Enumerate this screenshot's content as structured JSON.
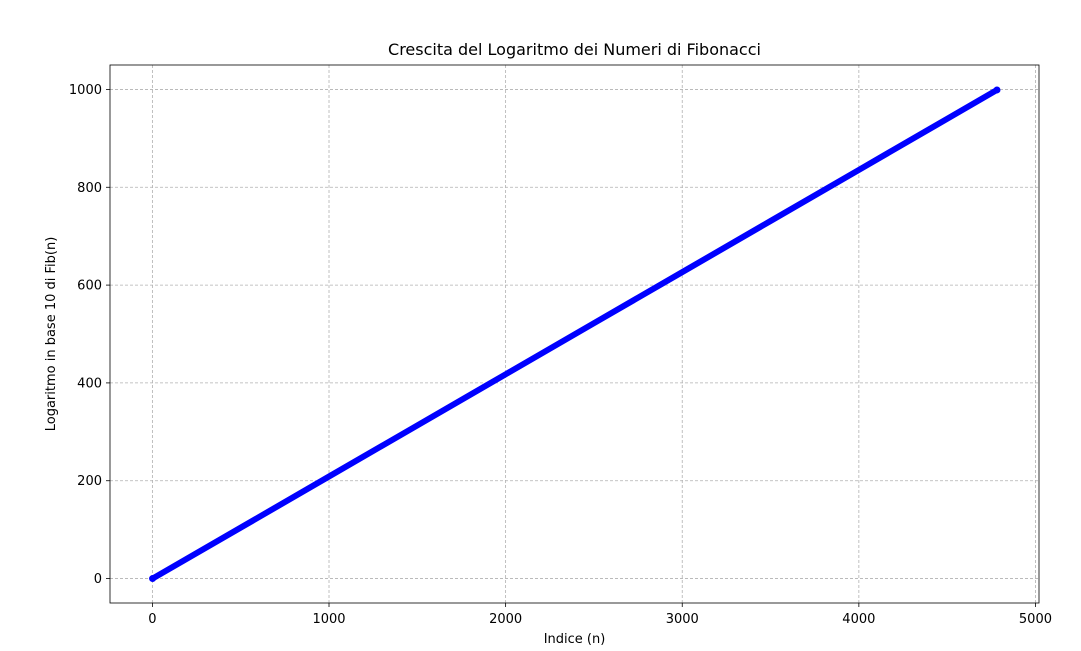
{
  "chart_data": {
    "type": "line",
    "title": "Crescita del Logaritmo dei Numeri di Fibonacci",
    "xlabel": "Indice (n)",
    "ylabel": "Logaritmo in base 10 di Fib(n)",
    "xlim": [
      -240,
      5020
    ],
    "ylim": [
      -50,
      1050
    ],
    "xticks": [
      0,
      1000,
      2000,
      3000,
      4000,
      5000
    ],
    "yticks": [
      0,
      200,
      400,
      600,
      800,
      1000
    ],
    "grid": true,
    "series": [
      {
        "color": "#0000ff",
        "marker": "dot",
        "x_start": 1,
        "x_end": 4782,
        "x": [
          1,
          500,
          1000,
          1500,
          2000,
          2500,
          3000,
          3500,
          4000,
          4500,
          4782
        ],
        "y": [
          0,
          104.1,
          208.6,
          313.1,
          417.6,
          522.1,
          626.5,
          731.0,
          835.5,
          940.0,
          999.0
        ]
      }
    ]
  }
}
